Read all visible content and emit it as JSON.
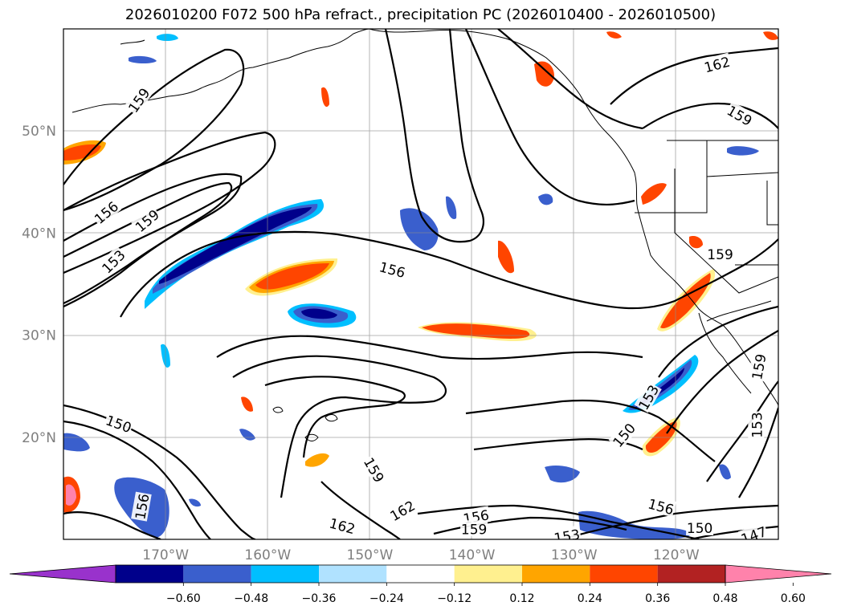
{
  "title": "2026010200 F072 500 hPa refract., precipitation PC (2026010400 - 2026010500)",
  "chart_data": {
    "type": "map",
    "projection": "cylindrical",
    "lon_range": [
      -180,
      -110
    ],
    "lat_range": [
      10,
      60
    ],
    "lat_ticks": [
      {
        "value": 50,
        "label": "50°N"
      },
      {
        "value": 40,
        "label": "40°N"
      },
      {
        "value": 30,
        "label": "30°N"
      },
      {
        "value": 20,
        "label": "20°N"
      }
    ],
    "lon_ticks": [
      {
        "value": -170,
        "label": "170°W"
      },
      {
        "value": -160,
        "label": "160°W"
      },
      {
        "value": -150,
        "label": "150°W"
      },
      {
        "value": -140,
        "label": "140°W"
      },
      {
        "value": -130,
        "label": "130°W"
      },
      {
        "value": -120,
        "label": "120°W"
      }
    ],
    "contour_labels": [
      {
        "text": "159",
        "lon": -172.6,
        "lat": 53.0,
        "rot": -55
      },
      {
        "text": "156",
        "lon": -175.8,
        "lat": 42.0,
        "rot": -40
      },
      {
        "text": "159",
        "lon": -171.8,
        "lat": 41.2,
        "rot": -40
      },
      {
        "text": "153",
        "lon": -175.1,
        "lat": 37.2,
        "rot": -45
      },
      {
        "text": "156",
        "lon": -147.8,
        "lat": 36.4,
        "rot": 15
      },
      {
        "text": "162",
        "lon": -116.0,
        "lat": 56.5,
        "rot": -15
      },
      {
        "text": "159",
        "lon": -113.8,
        "lat": 51.5,
        "rot": 30
      },
      {
        "text": "159",
        "lon": -115.7,
        "lat": 37.9,
        "rot": 0
      },
      {
        "text": "150",
        "lon": -174.6,
        "lat": 21.3,
        "rot": 20
      },
      {
        "text": "159",
        "lon": -149.6,
        "lat": 16.8,
        "rot": 60
      },
      {
        "text": "162",
        "lon": -146.8,
        "lat": 12.8,
        "rot": -30
      },
      {
        "text": "162",
        "lon": -152.7,
        "lat": 11.3,
        "rot": 15
      },
      {
        "text": "156",
        "lon": -139.6,
        "lat": 12.2,
        "rot": -10
      },
      {
        "text": "159",
        "lon": -139.8,
        "lat": 11.0,
        "rot": 0
      },
      {
        "text": "153",
        "lon": -122.7,
        "lat": 23.9,
        "rot": -60
      },
      {
        "text": "150",
        "lon": -125.1,
        "lat": 20.2,
        "rot": -50
      },
      {
        "text": "159",
        "lon": -111.9,
        "lat": 26.9,
        "rot": -80
      },
      {
        "text": "153",
        "lon": -112.1,
        "lat": 21.2,
        "rot": -90
      },
      {
        "text": "156",
        "lon": -121.5,
        "lat": 13.2,
        "rot": 15
      },
      {
        "text": "150",
        "lon": -117.7,
        "lat": 11.1,
        "rot": 0
      },
      {
        "text": "153",
        "lon": -130.7,
        "lat": 10.3,
        "rot": -10
      },
      {
        "text": "147",
        "lon": -112.4,
        "lat": 10.4,
        "rot": -20
      },
      {
        "text": "156",
        "lon": -172.3,
        "lat": 13.2,
        "rot": -80
      }
    ],
    "colorbar": {
      "colors": [
        "#9932cc",
        "#00008b",
        "#3a5fcd",
        "#00bfff",
        "#b0e2ff",
        "#ffffff",
        "#fff08f",
        "#ffa500",
        "#ff4500",
        "#b22222",
        "#ff82ab"
      ],
      "tick_labels": [
        "−0.60",
        "−0.48",
        "−0.36",
        "−0.24",
        "−0.12",
        "0.12",
        "0.24",
        "0.36",
        "0.48",
        "0.60"
      ]
    }
  }
}
